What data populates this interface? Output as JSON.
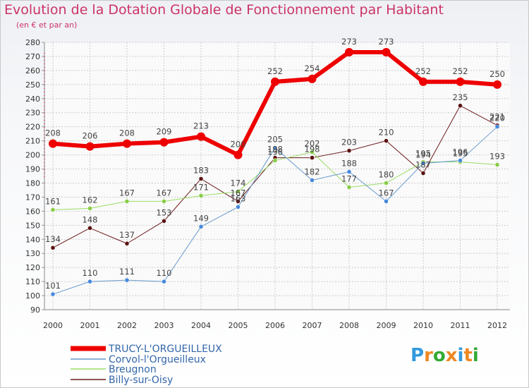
{
  "chart_data": {
    "type": "line",
    "title": "Evolution de la Dotation Globale de Fonctionnement par Habitant",
    "subtitle": "(en € et par an)",
    "categories": [
      "2000",
      "2001",
      "2002",
      "2003",
      "2004",
      "2005",
      "2006",
      "2007",
      "2008",
      "2009",
      "2010",
      "2011",
      "2012"
    ],
    "ylim": [
      90,
      280
    ],
    "yticks": [
      90,
      100,
      110,
      120,
      130,
      140,
      150,
      160,
      170,
      180,
      190,
      200,
      210,
      220,
      230,
      240,
      250,
      260,
      270,
      280
    ],
    "grid": true,
    "series": [
      {
        "name": "Billy-sur-Oisy",
        "color": "#6b1a1a",
        "marker": "#5a1010",
        "width": 1,
        "values": [
          134,
          148,
          137,
          153,
          183,
          167,
          198,
          198,
          203,
          210,
          187,
          235,
          221
        ]
      },
      {
        "name": "Breugnon",
        "color": "#99dd66",
        "marker": "#88cc44",
        "width": 1,
        "values": [
          161,
          162,
          167,
          167,
          171,
          174,
          196,
          202,
          177,
          180,
          195,
          195,
          193
        ]
      },
      {
        "name": "Corvol-l'Orgueilleux",
        "color": "#6699cc",
        "marker": "#4488dd",
        "width": 1,
        "values": [
          101,
          110,
          111,
          110,
          149,
          163,
          205,
          182,
          188,
          167,
          194,
          196,
          220
        ]
      },
      {
        "name": "TRUCY-L'ORGUEILLEUX",
        "color": "#ee0000",
        "marker": "#ee0000",
        "width": 6,
        "values": [
          208,
          206,
          208,
          209,
          213,
          200,
          252,
          254,
          273,
          273,
          252,
          252,
          250
        ]
      }
    ],
    "legend": [
      "TRUCY-L'ORGUEILLEUX",
      "Corvol-l'Orgueilleux",
      "Breugnon",
      "Billy-sur-Oisy"
    ]
  },
  "logo": {
    "letters": [
      "P",
      "r",
      "o",
      "x",
      "i",
      "t",
      "i"
    ],
    "colors": [
      "#3399dd",
      "#ee8822",
      "#33aa33",
      "#ee8822",
      "#3399dd",
      "#ee8822",
      "#33aa33"
    ]
  }
}
